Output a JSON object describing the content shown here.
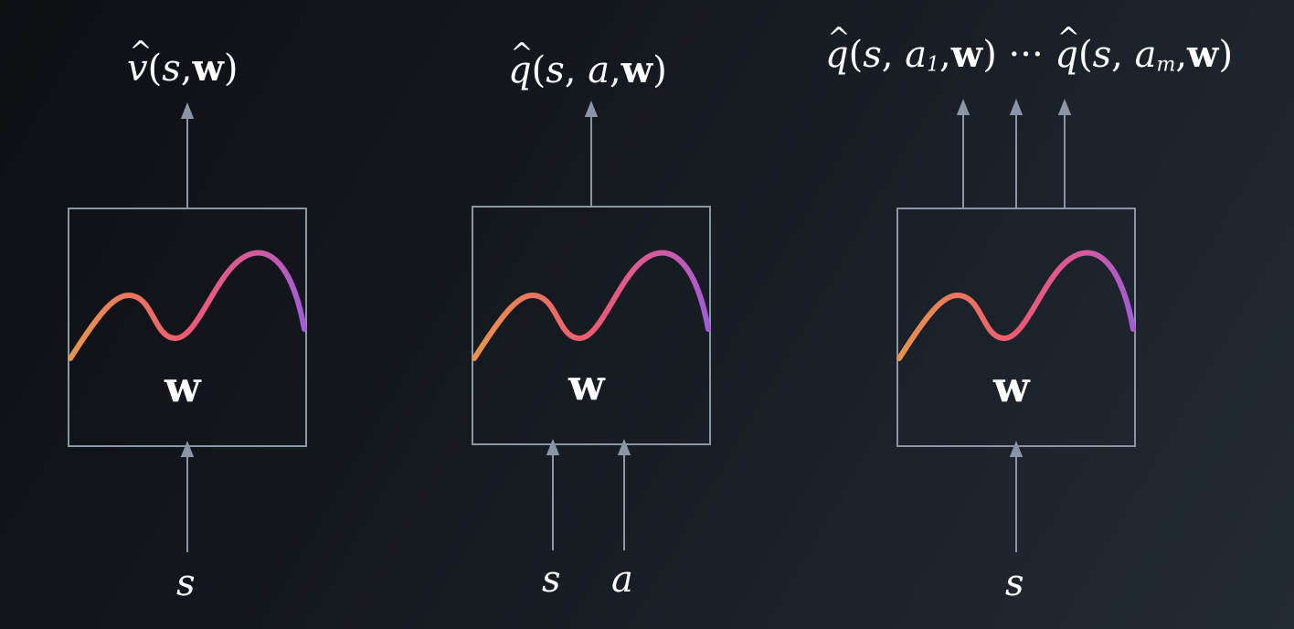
{
  "blocks": [
    {
      "output_labels": [
        "v̂(s,w)"
      ],
      "input_labels": [
        "s"
      ],
      "weight_label": "w"
    },
    {
      "output_labels": [
        "q̂(s, a, w)"
      ],
      "input_labels": [
        "s",
        "a"
      ],
      "weight_label": "w"
    },
    {
      "output_labels": [
        "q̂(s, a₁, w) ··· q̂(s, aₘ,w)"
      ],
      "input_labels": [
        "s"
      ],
      "weight_label": "w"
    }
  ],
  "colors": {
    "box_stroke": "#8a96a6",
    "arrow": "#8a96a6",
    "curve_start": "#e8934a",
    "curve_mid": "#ee5a73",
    "curve_end": "#a45bd6"
  }
}
